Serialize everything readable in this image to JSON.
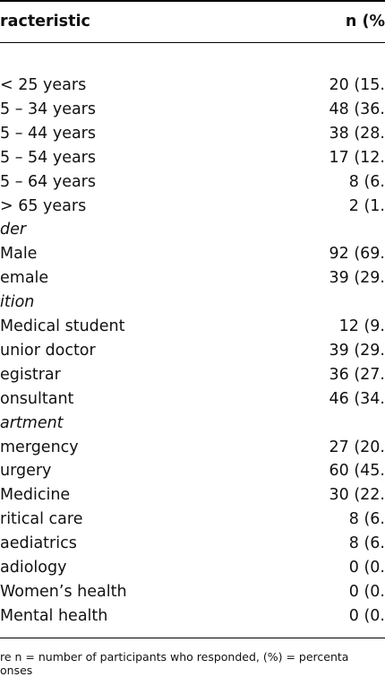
{
  "table": {
    "header": [
      "racteristic",
      "n (%"
    ],
    "rows": [
      {
        "label": "< 25 years",
        "value": "20 (15."
      },
      {
        "label": "5 – 34 years",
        "value": "48 (36."
      },
      {
        "label": "5 – 44 years",
        "value": "38 (28."
      },
      {
        "label": "5 – 54 years",
        "value": "17 (12."
      },
      {
        "label": "5 – 64 years",
        "value": "8 (6."
      },
      {
        "label": "> 65 years",
        "value": "2 (1."
      },
      {
        "label": "der",
        "italic": true
      },
      {
        "label": "Male",
        "value": "92 (69."
      },
      {
        "label": "emale",
        "value": "39 (29."
      },
      {
        "label": "ition",
        "italic": true
      },
      {
        "label": "Medical student",
        "value": "12 (9."
      },
      {
        "label": "unior doctor",
        "value": "39 (29."
      },
      {
        "label": "egistrar",
        "value": "36 (27."
      },
      {
        "label": "onsultant",
        "value": "46 (34."
      },
      {
        "label": "artment",
        "italic": true
      },
      {
        "label": "mergency",
        "value": "27 (20."
      },
      {
        "label": "urgery",
        "value": "60 (45."
      },
      {
        "label": "Medicine",
        "value": "30 (22."
      },
      {
        "label": "ritical care",
        "value": "8 (6."
      },
      {
        "label": "aediatrics",
        "value": "8 (6."
      },
      {
        "label": "adiology",
        "value": "0 (0."
      },
      {
        "label": "Women’s health",
        "value": "0 (0."
      },
      {
        "label": "Mental health",
        "value": "0 (0."
      }
    ],
    "footnote": [
      "re n = number of participants who responded, (%) = percenta",
      "onses"
    ]
  }
}
